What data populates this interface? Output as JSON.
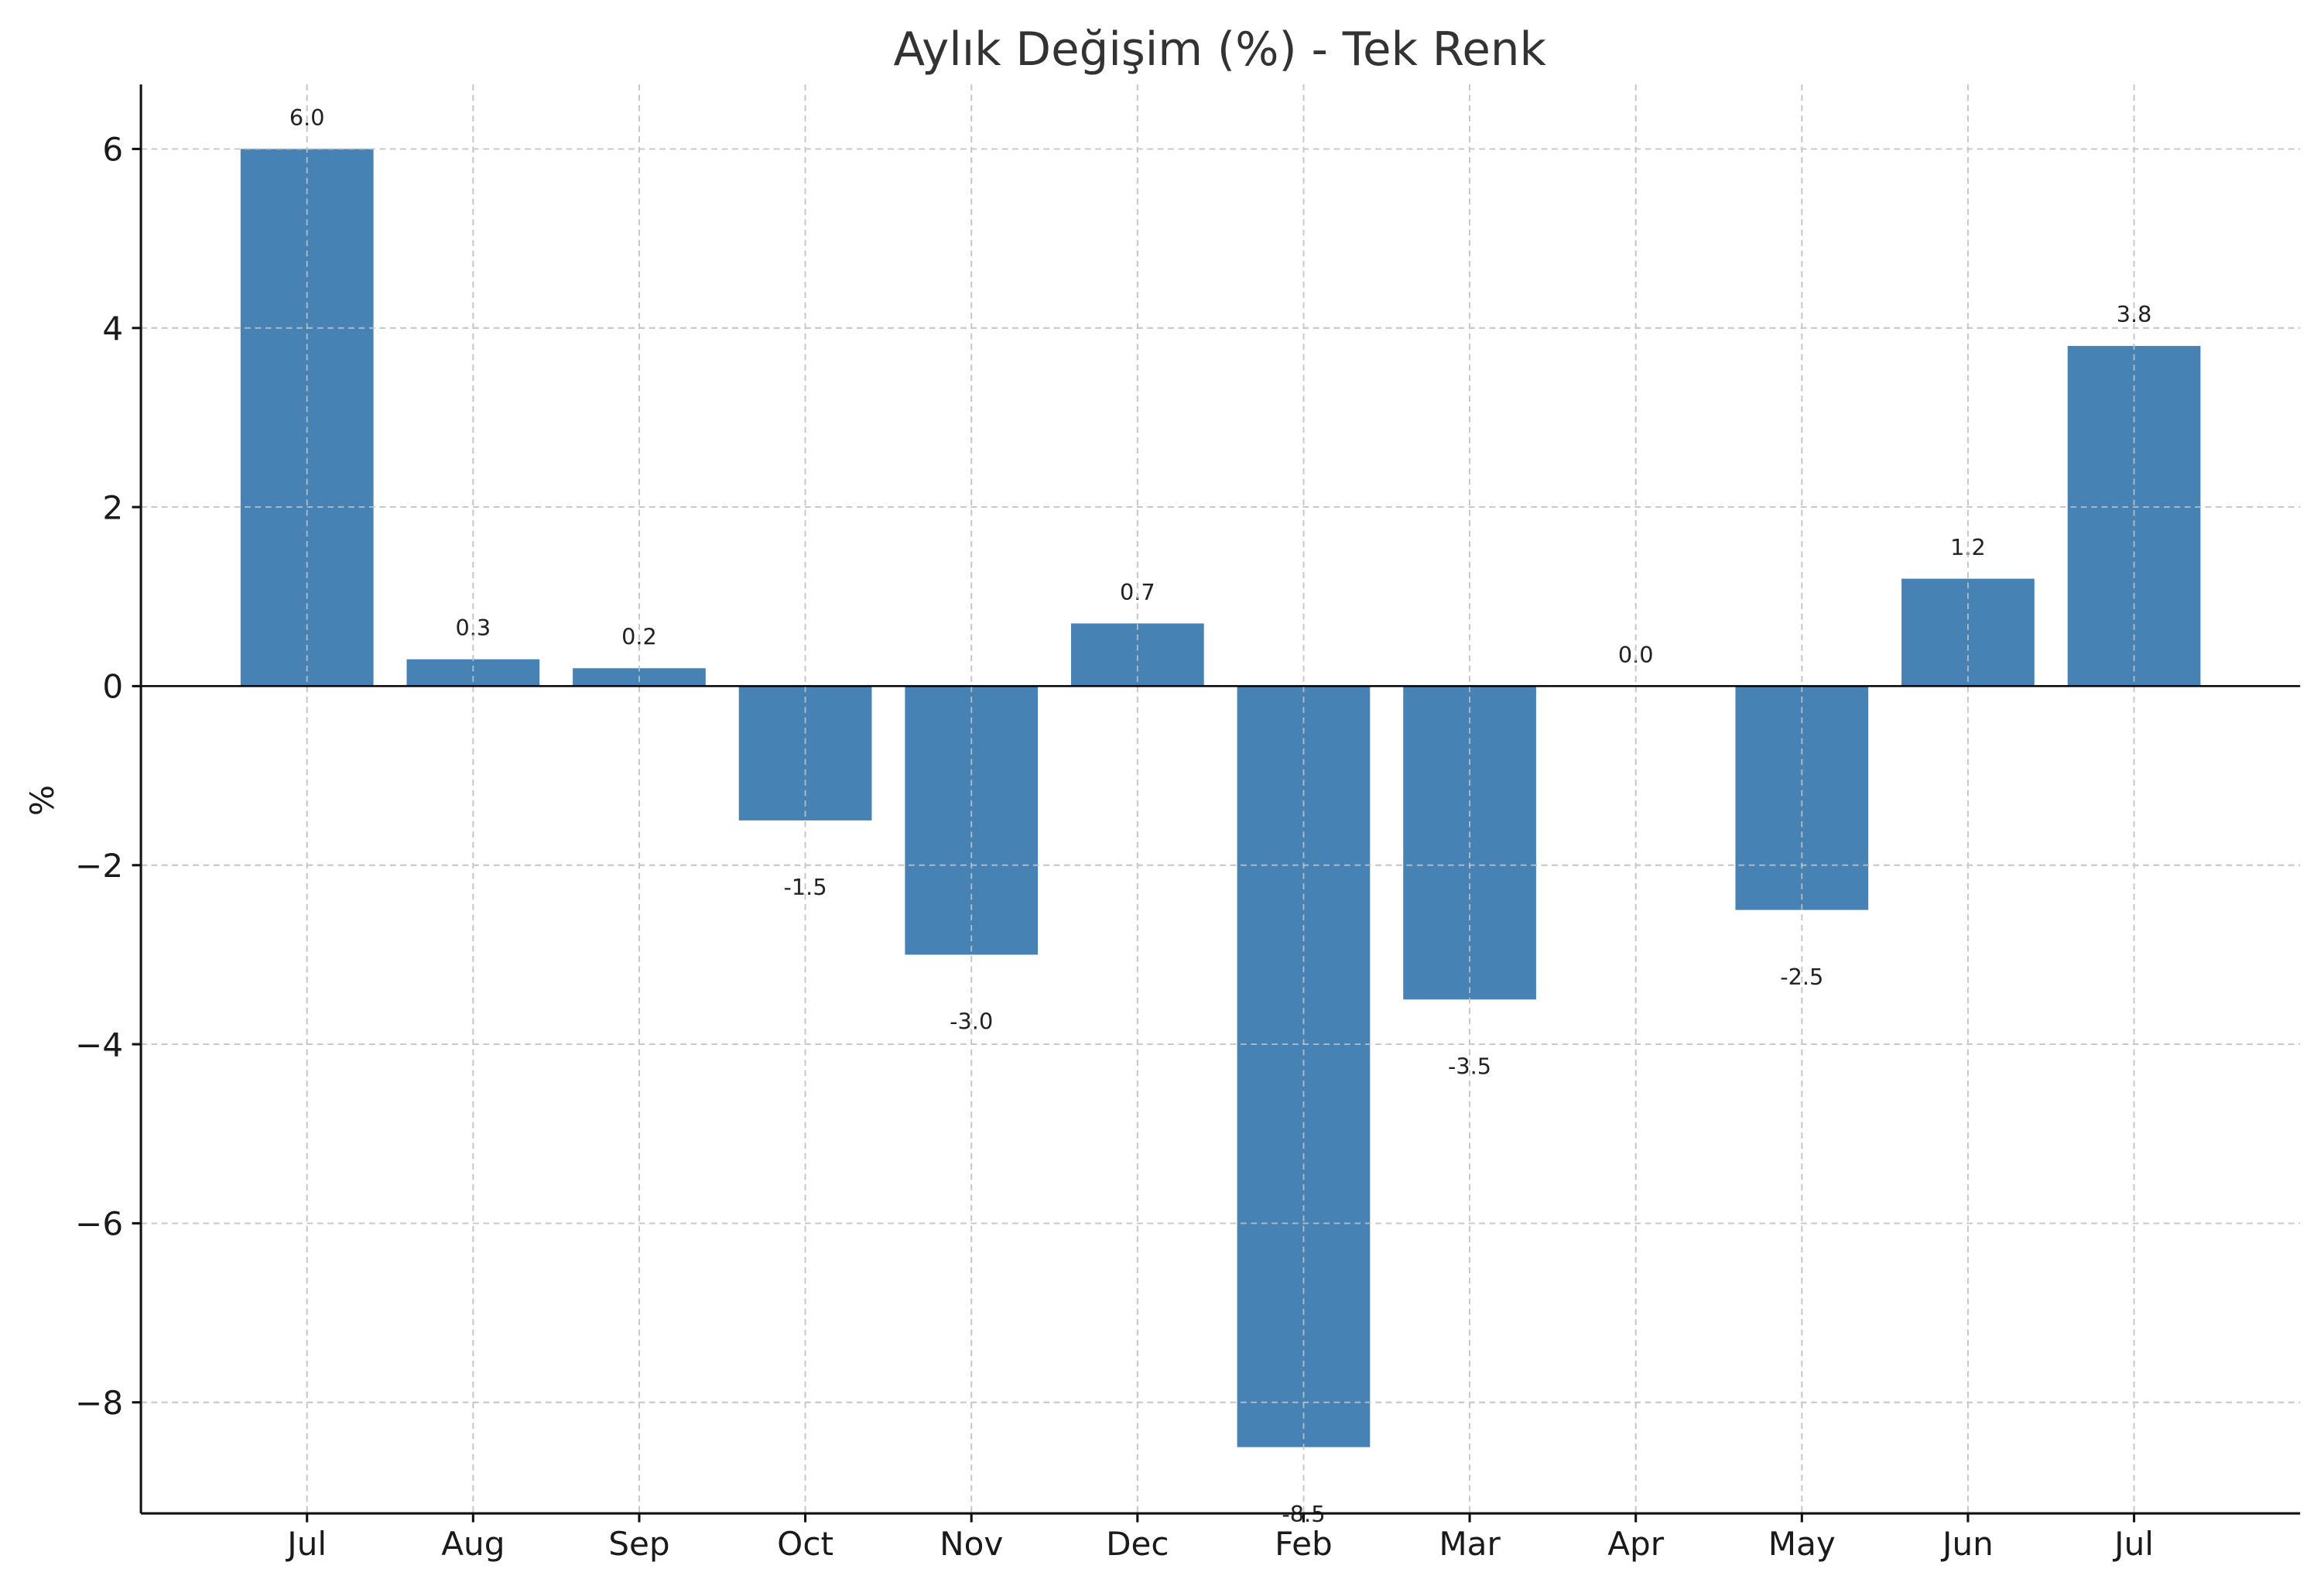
{
  "chart_data": {
    "type": "bar",
    "title": "Aylık Değişim (%) - Tek Renk",
    "xlabel": "",
    "ylabel": "%",
    "categories": [
      "Jul",
      "Aug",
      "Sep",
      "Oct",
      "Nov",
      "Dec",
      "Feb",
      "Mar",
      "Apr",
      "May",
      "Jun",
      "Jul"
    ],
    "values": [
      6.0,
      0.3,
      0.2,
      -1.5,
      -3.0,
      0.7,
      -8.5,
      -3.5,
      0.0,
      -2.5,
      1.2,
      3.8
    ],
    "value_labels": [
      "6.0",
      "0.3",
      "0.2",
      "-1.5",
      "-3.0",
      "0.7",
      "-8.5",
      "-3.5",
      "0.0",
      "-2.5",
      "1.2",
      "3.8"
    ],
    "ylim": [
      -9.24,
      6.72
    ],
    "yticks": [
      -8,
      -6,
      -4,
      -2,
      0,
      2,
      4,
      6
    ],
    "ytick_labels": [
      "−8",
      "−6",
      "−4",
      "−2",
      "0",
      "2",
      "4",
      "6"
    ],
    "grid": true,
    "zero_line": true,
    "bar_color": "#4682b4"
  }
}
